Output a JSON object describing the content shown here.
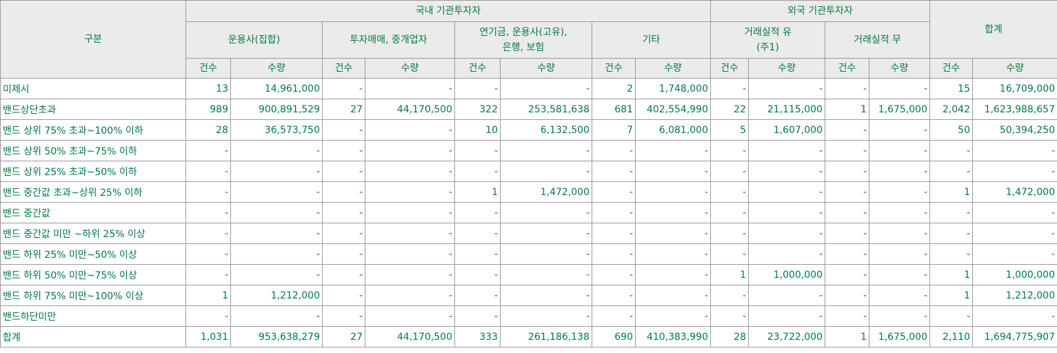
{
  "header": {
    "category": "구분",
    "domestic": "국내 기관투자자",
    "foreign": "외국 기관투자자",
    "total": "합계",
    "groups": [
      "운용사(집합)",
      "투자매매, 중개업자",
      "연기금, 운용사(고유), 은행, 보험",
      "기타",
      "거래실적 유 (주1)",
      "거래실적 무"
    ],
    "count_label": "건수",
    "qty_label": "수량"
  },
  "rows": [
    {
      "label": "미제시",
      "cells": [
        "13",
        "14,961,000",
        "-",
        "-",
        "-",
        "-",
        "2",
        "1,748,000",
        "-",
        "-",
        "-",
        "-",
        "15",
        "16,709,000"
      ]
    },
    {
      "label": "밴드상단초과",
      "cells": [
        "989",
        "900,891,529",
        "27",
        "44,170,500",
        "322",
        "253,581,638",
        "681",
        "402,554,990",
        "22",
        "21,115,000",
        "1",
        "1,675,000",
        "2,042",
        "1,623,988,657"
      ]
    },
    {
      "label": "밴드 상위 75% 초과~100% 이하",
      "cells": [
        "28",
        "36,573,750",
        "-",
        "-",
        "10",
        "6,132,500",
        "7",
        "6,081,000",
        "5",
        "1,607,000",
        "-",
        "-",
        "50",
        "50,394,250"
      ]
    },
    {
      "label": "밴드 상위 50% 초과~75% 이하",
      "cells": [
        "-",
        "-",
        "-",
        "-",
        "-",
        "-",
        "-",
        "-",
        "-",
        "-",
        "-",
        "-",
        "-",
        "-"
      ]
    },
    {
      "label": "밴드 상위 25% 초과~50% 이하",
      "cells": [
        "-",
        "-",
        "-",
        "-",
        "-",
        "-",
        "-",
        "-",
        "-",
        "-",
        "-",
        "-",
        "-",
        "-"
      ]
    },
    {
      "label": "밴드 중간값 초과~상위 25% 이하",
      "cells": [
        "-",
        "-",
        "-",
        "-",
        "1",
        "1,472,000",
        "-",
        "-",
        "-",
        "-",
        "-",
        "-",
        "1",
        "1,472,000"
      ]
    },
    {
      "label": "밴드 중간값",
      "cells": [
        "-",
        "-",
        "-",
        "-",
        "-",
        "-",
        "-",
        "-",
        "-",
        "-",
        "-",
        "-",
        "-",
        "-"
      ]
    },
    {
      "label": "밴드 중간값 미만 ~하위 25% 이상",
      "cells": [
        "-",
        "-",
        "-",
        "-",
        "-",
        "-",
        "-",
        "-",
        "-",
        "-",
        "-",
        "-",
        "-",
        "-"
      ]
    },
    {
      "label": "밴드 하위 25% 미만~50% 이상",
      "cells": [
        "-",
        "-",
        "-",
        "-",
        "-",
        "-",
        "-",
        "-",
        "-",
        "-",
        "-",
        "-",
        "-",
        "-"
      ]
    },
    {
      "label": "밴드 하위 50% 미만~75% 이상",
      "cells": [
        "-",
        "-",
        "-",
        "-",
        "-",
        "-",
        "-",
        "-",
        "1",
        "1,000,000",
        "-",
        "-",
        "1",
        "1,000,000"
      ]
    },
    {
      "label": "밴드 하위 75% 미만~100% 이상",
      "cells": [
        "1",
        "1,212,000",
        "-",
        "-",
        "-",
        "-",
        "-",
        "-",
        "-",
        "-",
        "-",
        "-",
        "1",
        "1,212,000"
      ]
    },
    {
      "label": "밴드하단미만",
      "cells": [
        "-",
        "-",
        "-",
        "-",
        "-",
        "-",
        "-",
        "-",
        "-",
        "-",
        "-",
        "-",
        "-",
        "-"
      ]
    },
    {
      "label": "합계",
      "cells": [
        "1,031",
        "953,638,279",
        "27",
        "44,170,500",
        "333",
        "261,186,138",
        "690",
        "410,383,990",
        "28",
        "23,722,000",
        "1",
        "1,675,000",
        "2,110",
        "1,694,775,907"
      ]
    }
  ]
}
